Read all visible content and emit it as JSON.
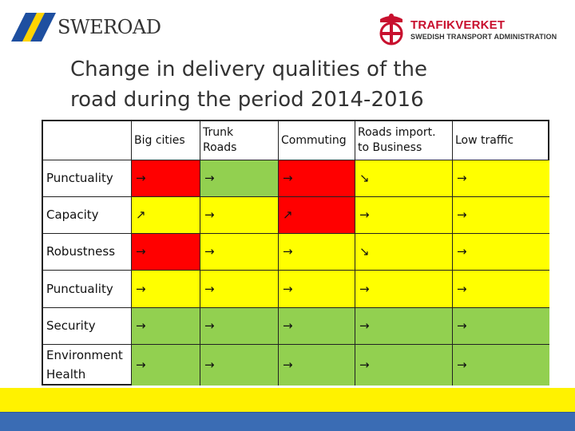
{
  "header": {
    "left_logo_text": "SWEROAD",
    "right_logo_name": "TRAFIKVERKET",
    "right_logo_subtitle": "SWEDISH TRANSPORT ADMINISTRATION"
  },
  "title": {
    "line1": "Change in delivery qualities of the",
    "line2": "road during the period 2014-2016"
  },
  "table": {
    "columns": [
      {
        "line1": "Big cities",
        "line2": ""
      },
      {
        "line1": "Trunk",
        "line2": "Roads"
      },
      {
        "line1": "Commuting",
        "line2": ""
      },
      {
        "line1": "Roads  import.",
        "line2": "to Business"
      },
      {
        "line1": "Low traffic",
        "line2": ""
      }
    ],
    "rows": [
      {
        "label1": "Punctuality",
        "label2": "",
        "cells": [
          {
            "symbol": "→",
            "color": "#ff0000"
          },
          {
            "symbol": "→",
            "color": "#92d050"
          },
          {
            "symbol": "→",
            "color": "#ff0000"
          },
          {
            "symbol": "↘",
            "color": "#ffff00"
          },
          {
            "symbol": "→",
            "color": "#ffff00"
          }
        ]
      },
      {
        "label1": "Capacity",
        "label2": "",
        "cells": [
          {
            "symbol": "↗",
            "color": "#ffff00"
          },
          {
            "symbol": "→",
            "color": "#ffff00"
          },
          {
            "symbol": "↗",
            "color": "#ff0000"
          },
          {
            "symbol": "→",
            "color": "#ffff00"
          },
          {
            "symbol": "→",
            "color": "#ffff00"
          }
        ]
      },
      {
        "label1": "Robustness",
        "label2": "",
        "cells": [
          {
            "symbol": "→",
            "color": "#ff0000"
          },
          {
            "symbol": "→",
            "color": "#ffff00"
          },
          {
            "symbol": "→",
            "color": "#ffff00"
          },
          {
            "symbol": "↘",
            "color": "#ffff00"
          },
          {
            "symbol": "→",
            "color": "#ffff00"
          }
        ]
      },
      {
        "label1": "Punctuality",
        "label2": "",
        "cells": [
          {
            "symbol": "→",
            "color": "#ffff00"
          },
          {
            "symbol": "→",
            "color": "#ffff00"
          },
          {
            "symbol": "→",
            "color": "#ffff00"
          },
          {
            "symbol": "→",
            "color": "#ffff00"
          },
          {
            "symbol": "→",
            "color": "#ffff00"
          }
        ]
      },
      {
        "label1": "Security",
        "label2": "",
        "cells": [
          {
            "symbol": "→",
            "color": "#92d050"
          },
          {
            "symbol": "→",
            "color": "#92d050"
          },
          {
            "symbol": "→",
            "color": "#92d050"
          },
          {
            "symbol": "→",
            "color": "#92d050"
          },
          {
            "symbol": "→",
            "color": "#92d050"
          }
        ]
      },
      {
        "label1": "Environment",
        "label2": "Health",
        "cells": [
          {
            "symbol": "→",
            "color": "#92d050"
          },
          {
            "symbol": "→",
            "color": "#92d050"
          },
          {
            "symbol": "→",
            "color": "#92d050"
          },
          {
            "symbol": "→",
            "color": "#92d050"
          },
          {
            "symbol": "→",
            "color": "#92d050"
          }
        ]
      }
    ]
  },
  "colors": {
    "footer_yellow": "#fff200",
    "footer_blue": "#3a6cb4",
    "brand_red": "#c8102e"
  }
}
